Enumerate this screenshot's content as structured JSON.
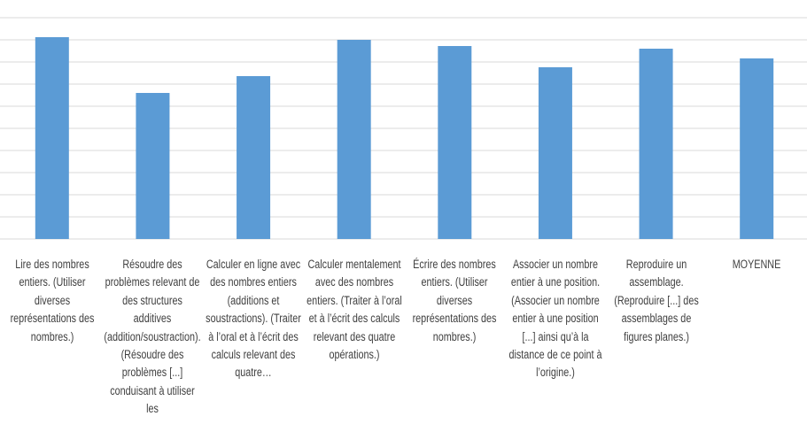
{
  "chart_data": {
    "type": "bar",
    "categories": [
      "Lire des nombres entiers. (Utiliser diverses représentations des nombres.)",
      "Résoudre des problèmes relevant de des structures additives (addition/soustraction). (Résoudre des problèmes [...] conduisant à utiliser les",
      "Calculer en ligne avec des nombres entiers (additions et soustractions). (Traiter à l’oral et à l’écrit des calculs relevant des quatre…",
      "Calculer mentalement avec des nombres entiers. (Traiter à l’oral et à l’écrit des calculs relevant des quatre opérations.)",
      "Écrire des nombres entiers. (Utiliser diverses représentations des nombres.)",
      "Associer un nombre entier à une position. (Associer un nombre entier à une position [...] ainsi qu’à la distance de ce point à l’origine.)",
      "Reproduire un assemblage. (Reproduire [...] des assemblages de figures planes.)",
      "MOYENNE"
    ],
    "values": [
      91.2,
      66,
      73.6,
      90,
      87.2,
      77.6,
      86,
      81.6
    ],
    "color": "#5b9bd5",
    "ylim": [
      0,
      100
    ],
    "yticks": [
      0,
      10,
      20,
      30,
      40,
      50,
      60,
      70,
      80,
      90,
      100
    ],
    "grid": true
  }
}
